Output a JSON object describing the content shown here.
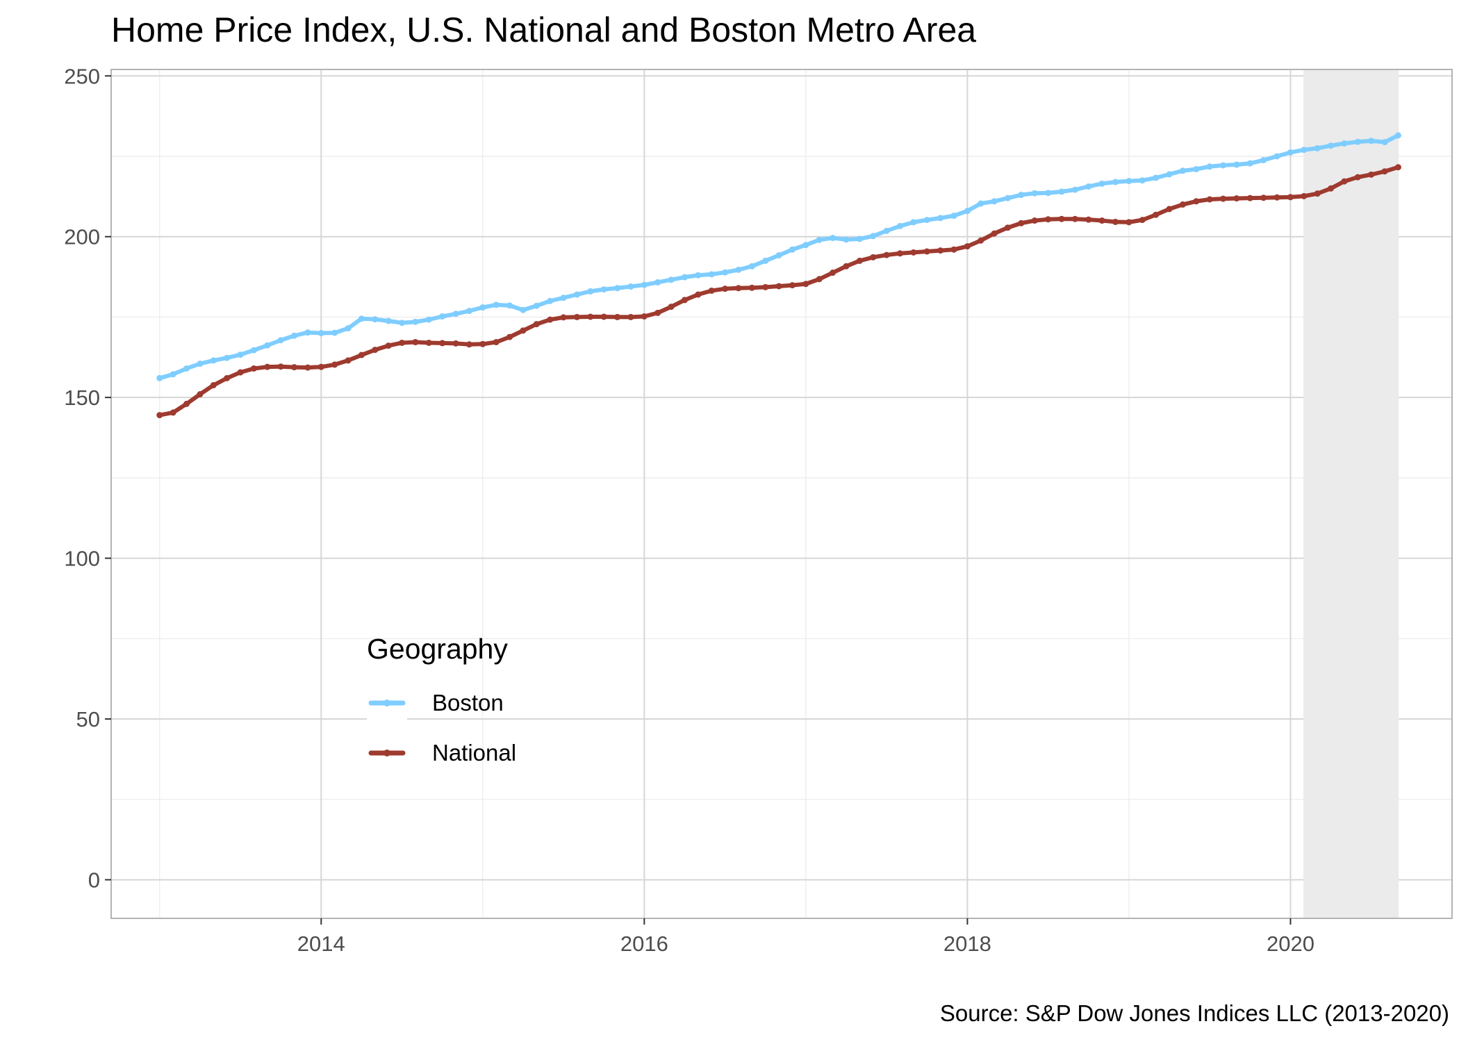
{
  "chart_data": {
    "type": "line",
    "title": "Home Price Index, U.S. National and Boston Metro Area",
    "caption": "Source: S&P Dow Jones Indices LLC (2013-2020)",
    "xlabel": "",
    "ylabel": "",
    "xlim": [
      2012.7,
      2021.0
    ],
    "ylim": [
      -12,
      252
    ],
    "x_ticks": [
      2014,
      2016,
      2018,
      2020
    ],
    "x_tick_labels": [
      "2014",
      "2016",
      "2018",
      "2020"
    ],
    "y_ticks": [
      0,
      50,
      100,
      150,
      200,
      250
    ],
    "y_tick_labels": [
      "0",
      "50",
      "100",
      "150",
      "200",
      "250"
    ],
    "grid": true,
    "shaded_region": {
      "x_start": 2020.08,
      "x_end": 2020.67,
      "color": "#ebebeb"
    },
    "legend": {
      "title": "Geography",
      "position": "inside-lower-left"
    },
    "x_start": 2013.0,
    "x_step": 0.08333,
    "series": [
      {
        "name": "Boston",
        "color": "#7fcdff",
        "values": [
          156.0,
          157.2,
          159.0,
          160.5,
          161.5,
          162.3,
          163.3,
          164.7,
          166.2,
          167.8,
          169.2,
          170.2,
          170.0,
          170.1,
          171.5,
          174.5,
          174.3,
          173.8,
          173.2,
          173.5,
          174.2,
          175.2,
          176.0,
          176.9,
          178.0,
          178.8,
          178.6,
          177.2,
          178.5,
          180.0,
          181.0,
          182.0,
          183.0,
          183.6,
          184.0,
          184.5,
          185.0,
          185.8,
          186.6,
          187.4,
          188.0,
          188.3,
          188.9,
          189.7,
          190.8,
          192.5,
          194.2,
          196.0,
          197.4,
          199.0,
          199.6,
          199.1,
          199.3,
          200.2,
          201.8,
          203.3,
          204.5,
          205.2,
          205.8,
          206.5,
          208.0,
          210.3,
          211.0,
          212.0,
          213.0,
          213.5,
          213.6,
          214.0,
          214.6,
          215.6,
          216.5,
          217.0,
          217.3,
          217.5,
          218.3,
          219.4,
          220.5,
          221.0,
          221.8,
          222.2,
          222.4,
          222.8,
          223.8,
          225.0,
          226.2,
          227.0,
          227.5,
          228.3,
          229.0,
          229.5,
          229.8,
          229.4,
          231.5
        ]
      },
      {
        "name": "National",
        "color": "#9e3a2f",
        "values": [
          144.5,
          145.3,
          148.0,
          151.0,
          153.8,
          156.0,
          157.8,
          159.0,
          159.5,
          159.6,
          159.4,
          159.3,
          159.5,
          160.2,
          161.5,
          163.2,
          164.8,
          166.1,
          167.0,
          167.2,
          167.0,
          166.9,
          166.8,
          166.5,
          166.6,
          167.2,
          168.8,
          170.8,
          172.8,
          174.2,
          174.9,
          175.0,
          175.1,
          175.1,
          175.0,
          175.0,
          175.2,
          176.3,
          178.2,
          180.3,
          182.0,
          183.2,
          183.8,
          184.0,
          184.1,
          184.3,
          184.6,
          184.9,
          185.3,
          186.8,
          188.8,
          190.8,
          192.5,
          193.6,
          194.3,
          194.8,
          195.1,
          195.4,
          195.7,
          196.0,
          197.0,
          198.8,
          201.0,
          202.8,
          204.2,
          205.0,
          205.4,
          205.5,
          205.5,
          205.3,
          205.0,
          204.6,
          204.5,
          205.2,
          206.8,
          208.6,
          210.0,
          211.0,
          211.6,
          211.8,
          211.9,
          212.0,
          212.1,
          212.2,
          212.3,
          212.6,
          213.4,
          215.0,
          217.2,
          218.5,
          219.3,
          220.3,
          221.6
        ]
      }
    ]
  }
}
